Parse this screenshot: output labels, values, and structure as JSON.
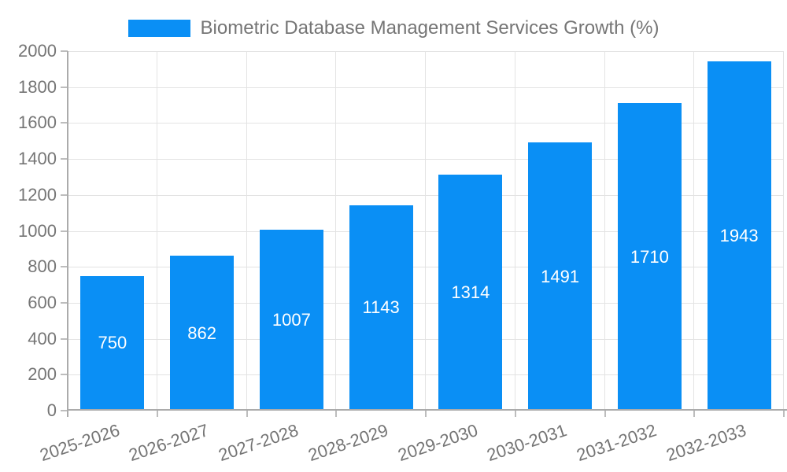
{
  "legend": {
    "label": "Biometric Database Management Services Growth (%)"
  },
  "chart_data": {
    "type": "bar",
    "title": "Biometric Database Management Services Growth (%)",
    "categories": [
      "2025-2026",
      "2026-2027",
      "2027-2028",
      "2028-2029",
      "2029-2030",
      "2030-2031",
      "2031-2032",
      "2032-2033"
    ],
    "series": [
      {
        "name": "Biometric Database Management Services Growth (%)",
        "values": [
          750,
          862,
          1007,
          1143,
          1314,
          1491,
          1710,
          1943
        ]
      }
    ],
    "value_labels_shown": true,
    "xlabel": "",
    "ylabel": "",
    "ylim": [
      0,
      2000
    ],
    "ytick_step": 200,
    "ytick_labels": [
      "0",
      "200",
      "400",
      "600",
      "800",
      "1000",
      "1200",
      "1400",
      "1600",
      "1800",
      "2000"
    ],
    "grid": true,
    "legend_position": "top-center",
    "x_label_rotation_deg": -18.5
  },
  "colors": {
    "bar": "#0a8ff5",
    "value_label": "#ffffff",
    "axis_text": "#757575",
    "legend_text": "#757575",
    "gridline": "#e3e3e3",
    "axis_line": "#ababab",
    "tick_mark": "#bdbdbd",
    "background": "#ffffff"
  }
}
